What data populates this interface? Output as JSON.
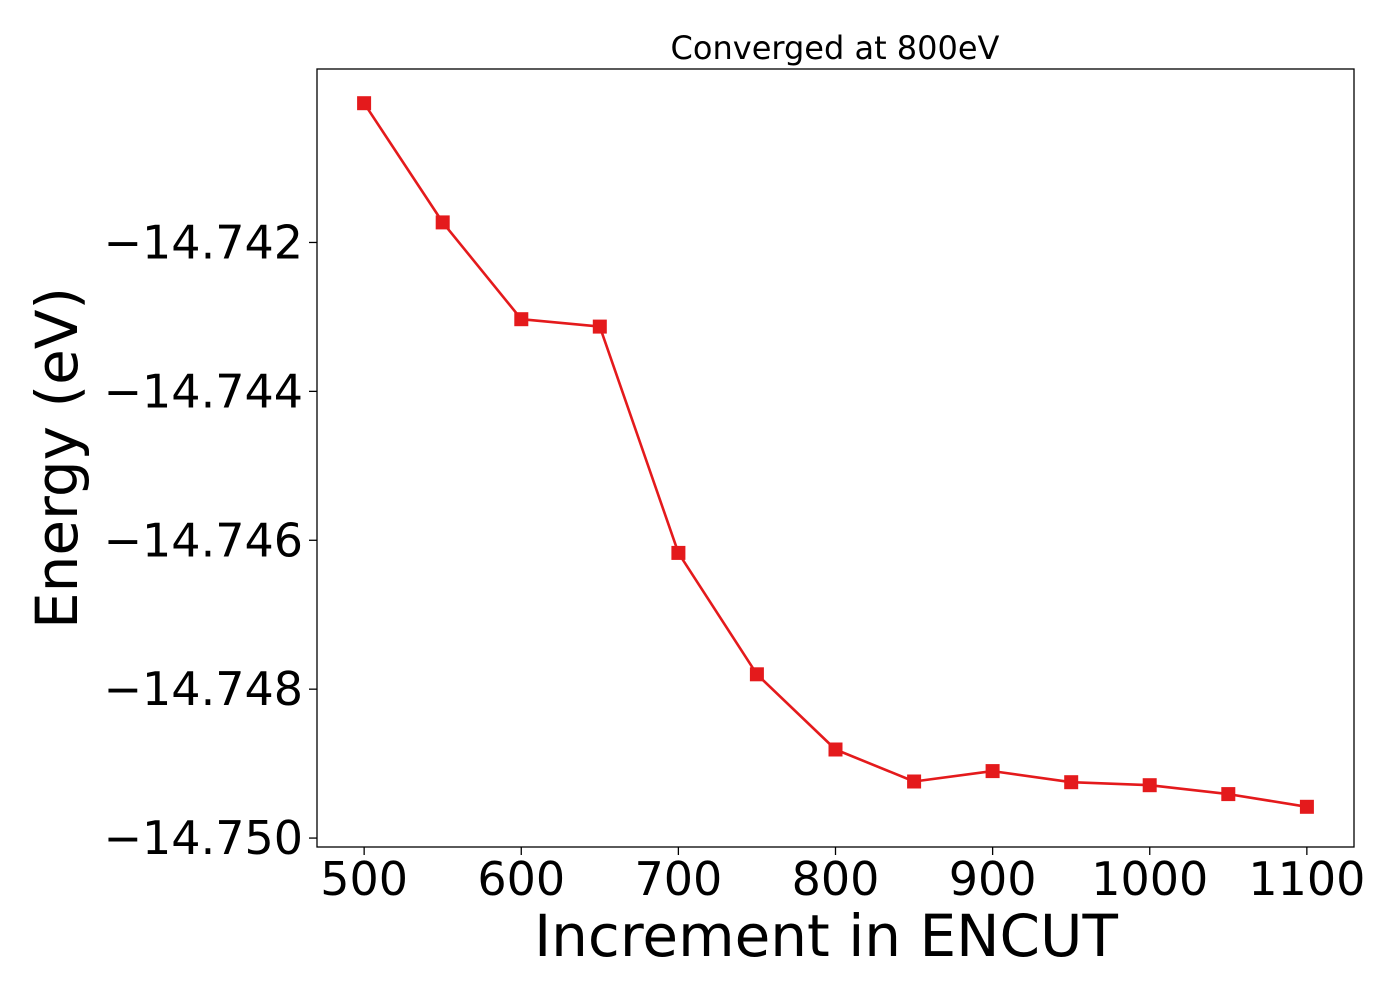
{
  "chart_data": {
    "type": "line",
    "title": "Converged at 800eV",
    "xlabel": "Increment in ENCUT",
    "ylabel": "Energy (eV)",
    "xlim": [
      470,
      1130
    ],
    "ylim": [
      -14.75012,
      -14.73967
    ],
    "x_ticks": [
      500,
      600,
      700,
      800,
      900,
      1000,
      1100
    ],
    "x_tick_labels": [
      "500",
      "600",
      "700",
      "800",
      "900",
      "1000",
      "1100"
    ],
    "y_ticks": [
      -14.742,
      -14.744,
      -14.746,
      -14.748,
      -14.75
    ],
    "y_tick_labels": [
      "−14.742",
      "−14.744",
      "−14.746",
      "−14.748",
      "−14.750"
    ],
    "grid": false,
    "legend": "none",
    "series": [
      {
        "color": "#e41a1c",
        "marker": "square",
        "x": [
          500,
          550,
          600,
          650,
          700,
          750,
          800,
          850,
          900,
          950,
          1000,
          1050,
          1100
        ],
        "y": [
          -14.74013,
          -14.74173,
          -14.74303,
          -14.74313,
          -14.74617,
          -14.7478,
          -14.74881,
          -14.74924,
          -14.7491,
          -14.74925,
          -14.74929,
          -14.74941,
          -14.74958
        ]
      }
    ]
  }
}
